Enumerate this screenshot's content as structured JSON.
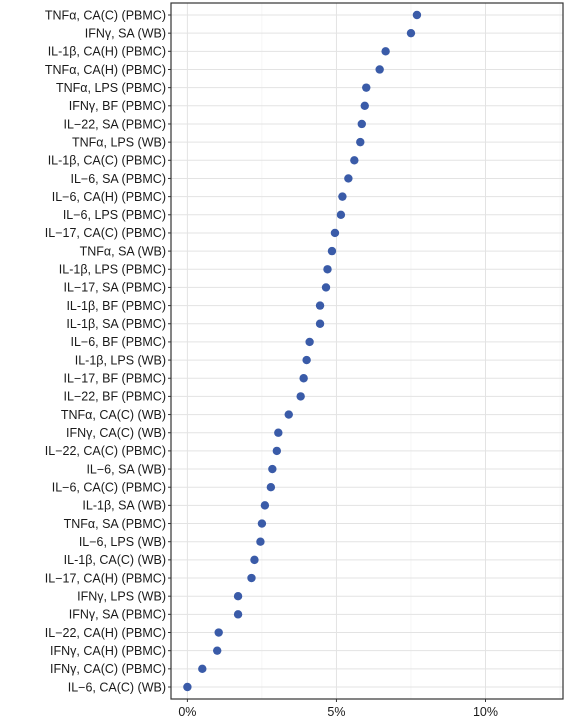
{
  "chart_data": {
    "type": "scatter",
    "orientation": "horizontal-dot-plot",
    "title": "",
    "xlabel": "",
    "ylabel": "",
    "xlim": [
      -0.55,
      12.6
    ],
    "x_ticks": [
      0,
      5,
      10
    ],
    "x_tick_labels": [
      "0%",
      "5%",
      "10%"
    ],
    "grid": true,
    "legend": "none",
    "point_color": "#3a5ba8",
    "categories": [
      "TNFα, CA(C) (PBMC)",
      "IFNγ, SA (WB)",
      "IL-1β, CA(H) (PBMC)",
      "TNFα, CA(H) (PBMC)",
      "TNFα, LPS (PBMC)",
      "IFNγ, BF (PBMC)",
      "IL−22, SA (PBMC)",
      "TNFα, LPS (WB)",
      "IL-1β, CA(C) (PBMC)",
      "IL−6, SA (PBMC)",
      "IL−6, CA(H) (PBMC)",
      "IL−6, LPS (PBMC)",
      "IL−17, CA(C) (PBMC)",
      "TNFα, SA (WB)",
      "IL-1β, LPS (PBMC)",
      "IL−17, SA (PBMC)",
      "IL-1β, BF (PBMC)",
      "IL-1β, SA (PBMC)",
      "IL−6, BF (PBMC)",
      "IL-1β, LPS (WB)",
      "IL−17, BF (PBMC)",
      "IL−22, BF (PBMC)",
      "TNFα, CA(C) (WB)",
      "IFNγ, CA(C) (WB)",
      "IL−22, CA(C) (PBMC)",
      "IL−6, SA (WB)",
      "IL−6, CA(C) (PBMC)",
      "IL-1β, SA (WB)",
      "TNFα, SA (PBMC)",
      "IL−6, LPS (WB)",
      "IL-1β, CA(C) (WB)",
      "IL−17, CA(H) (PBMC)",
      "IFNγ, LPS (WB)",
      "IFNγ, SA (PBMC)",
      "IL−22, CA(H) (PBMC)",
      "IFNγ, CA(H) (PBMC)",
      "IFNγ, CA(C) (PBMC)",
      "IL−6, CA(C) (WB)"
    ],
    "values": [
      7.7,
      7.5,
      6.65,
      6.45,
      6.0,
      5.95,
      5.85,
      5.8,
      5.6,
      5.4,
      5.2,
      5.15,
      4.95,
      4.85,
      4.7,
      4.65,
      4.45,
      4.45,
      4.1,
      4.0,
      3.9,
      3.8,
      3.4,
      3.05,
      3.0,
      2.85,
      2.8,
      2.6,
      2.5,
      2.45,
      2.25,
      2.15,
      1.7,
      1.7,
      1.05,
      1.0,
      0.5,
      0.0
    ]
  }
}
